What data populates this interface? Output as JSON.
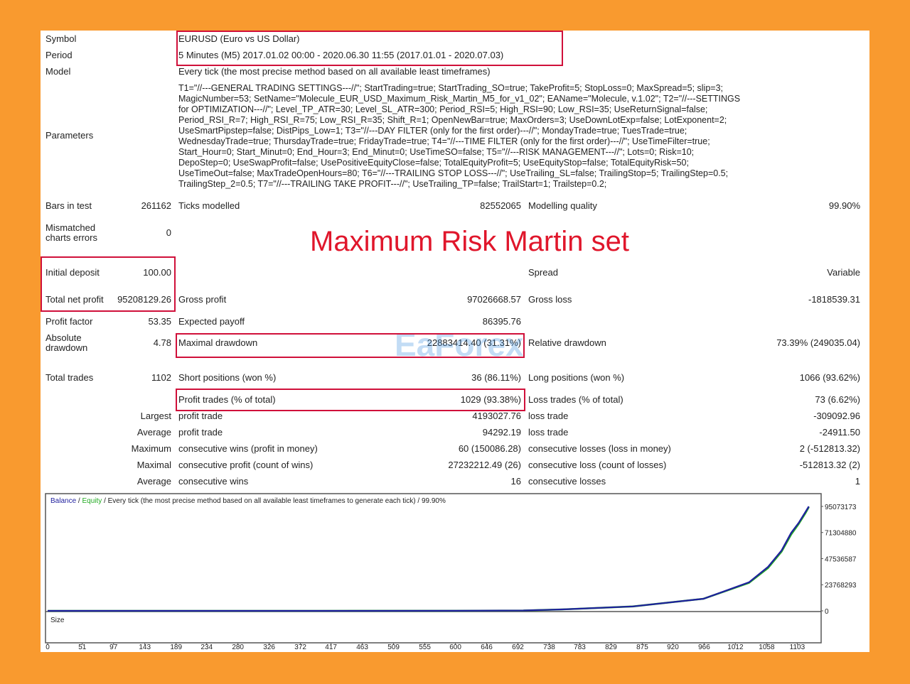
{
  "report": {
    "header_rows": [
      {
        "label": "Symbol",
        "value": "EURUSD (Euro vs US Dollar)"
      },
      {
        "label": "Period",
        "value": "5 Minutes (M5) 2017.01.02 00:00 - 2020.06.30 11:55 (2017.01.01 - 2020.07.03)"
      },
      {
        "label": "Model",
        "value": "Every tick (the most precise method based on all available least timeframes)"
      }
    ],
    "parameters": {
      "label": "Parameters",
      "lines": [
        "T1=\"//---GENERAL TRADING SETTINGS---//\"; StartTrading=true; StartTrading_SO=true; TakeProfit=5; StopLoss=0; MaxSpread=5; slip=3;",
        "MagicNumber=53; SetName=\"Molecule_EUR_USD_Maximum_Risk_Martin_M5_for_v1_02\"; EAName=\"Molecule, v.1.02\"; T2=\"//---SETTINGS",
        "for OPTIMIZATION---//\"; Level_TP_ATR=30; Level_SL_ATR=300; Period_RSI=5; High_RSI=90; Low_RSI=35; UseReturnSignal=false;",
        "Period_RSI_R=7; High_RSI_R=75; Low_RSI_R=35; Shift_R=1; OpenNewBar=true; MaxOrders=3; UseDownLotExp=false; LotExponent=2;",
        "UseSmartPipstep=false; DistPips_Low=1; T3=\"//---DAY FILTER (only for the first order)---//\"; MondayTrade=true; TuesTrade=true;",
        "WednesdayTrade=true; ThursdayTrade=true; FridayTrade=true; T4=\"//---TIME FILTER (only for the first order)---//\"; UseTimeFilter=true;",
        "Start_Hour=0; Start_Minut=0; End_Hour=3; End_Minut=0; UseTimeSO=false; T5=\"//---RISK MANAGEMENT---//\"; Lots=0; Risk=10;",
        "DepoStep=0; UseSwapProfit=false; UsePositiveEquityClose=false; TotalEquityProfit=5; UseEquityStop=false; TotalEquityRisk=50;",
        "UseTimeOut=false; MaxTradeOpenHours=80; T6=\"//---TRAILING STOP LOSS---//\"; UseTrailing_SL=false; TrailingStop=5; TrailingStep=0.5;",
        "TrailingStep_2=0.5; T7=\"//---TRAILING TAKE PROFIT---//\"; UseTrailing_TP=false; TrailStart=1; Trailstep=0.2;"
      ]
    },
    "stats": [
      [
        "Bars in test",
        "261162",
        "Ticks modelled",
        "82552065",
        "Modelling quality",
        "99.90%"
      ],
      [
        "Mismatched charts errors",
        "0",
        null,
        null,
        null,
        null
      ],
      [
        "Initial deposit",
        "100.00",
        null,
        null,
        "Spread",
        "Variable"
      ],
      [
        "Total net profit",
        "95208129.26",
        "Gross profit",
        "97026668.57",
        "Gross loss",
        "-1818539.31"
      ],
      [
        "Profit factor",
        "53.35",
        "Expected payoff",
        "86395.76",
        null,
        null
      ],
      [
        "Absolute drawdown",
        "4.78",
        "Maximal drawdown",
        "22883414.40 (31.31%)",
        "Relative drawdown",
        "73.39% (249035.04)"
      ],
      [
        "Total trades",
        "1102",
        "Short positions (won %)",
        "36 (86.11%)",
        "Long positions (won %)",
        "1066 (93.62%)"
      ],
      [
        null,
        null,
        "Profit trades (% of total)",
        "1029 (93.38%)",
        "Loss trades (% of total)",
        "73 (6.62%)"
      ],
      [
        "Largest",
        null,
        "profit trade",
        "4193027.76",
        "loss trade",
        "-309092.96"
      ],
      [
        "Average",
        null,
        "profit trade",
        "94292.19",
        "loss trade",
        "-24911.50"
      ],
      [
        "Maximum",
        null,
        "consecutive wins (profit in money)",
        "60 (150086.28)",
        "consecutive losses (loss in money)",
        "2 (-512813.32)"
      ],
      [
        "Maximal",
        null,
        "consecutive profit (count of wins)",
        "27232212.49 (26)",
        "consecutive loss (count of losses)",
        "-512813.32 (2)"
      ],
      [
        "Average",
        null,
        "consecutive wins",
        "16",
        "consecutive losses",
        "1"
      ]
    ],
    "overlay_title": "Maximum Risk Martin set",
    "watermark": "EaForex"
  },
  "chart_data": {
    "type": "line",
    "legend_separator": "/",
    "subtitle": "/ Every tick (the most precise method based on all available least timeframes to generate each tick) / 99.90%",
    "size_label": "Size",
    "x": [
      0,
      200,
      400,
      600,
      700,
      757,
      861,
      965,
      1032,
      1060,
      1080,
      1094,
      1105,
      1115,
      1120
    ],
    "series": [
      {
        "name": "Balance",
        "color": "#1f1f9e",
        "values": [
          0,
          2000,
          10000,
          60000,
          300000,
          1300000,
          4000000,
          11000000,
          26000000,
          40000000,
          55000000,
          71000000,
          80000000,
          90000000,
          95073173
        ]
      },
      {
        "name": "Equity",
        "color": "#22aa22",
        "values": [
          0,
          2000,
          10000,
          60000,
          300000,
          1300000,
          4000000,
          11000000,
          25500000,
          39000000,
          54000000,
          69500000,
          79000000,
          89000000,
          94500000
        ]
      }
    ],
    "xlim": [
      0,
      1135
    ],
    "ylim": [
      0,
      105400000
    ],
    "xticks": [
      0,
      51,
      97,
      143,
      189,
      234,
      280,
      326,
      372,
      417,
      463,
      509,
      555,
      600,
      646,
      692,
      738,
      783,
      829,
      875,
      920,
      966,
      1012,
      1058,
      1103
    ],
    "yticks": [
      0,
      23768293,
      47536587,
      71304880,
      95073173
    ]
  }
}
